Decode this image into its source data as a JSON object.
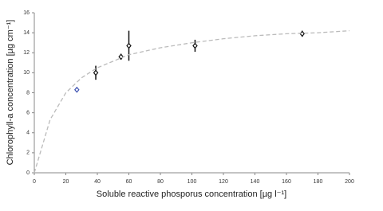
{
  "chart_data": {
    "type": "scatter",
    "x_label": "Soluble reactive phosporus concentration [µg l⁻¹]",
    "y_label": "Chlorophyll-a concentration [µg cm⁻¹]",
    "xlim": [
      0,
      200
    ],
    "xticks": [
      0,
      20,
      40,
      60,
      80,
      100,
      120,
      140,
      160,
      180,
      200
    ],
    "ylim": [
      0,
      16
    ],
    "yticks": [
      0,
      2,
      4,
      6,
      8,
      10,
      12,
      14,
      16
    ],
    "series": [
      {
        "color": "#111111",
        "marker_colors": [
          "#3a4fb0",
          "#111111",
          "#111111",
          "#111111",
          "#111111",
          "#111111"
        ],
        "x": [
          27,
          39,
          55,
          60,
          102,
          170
        ],
        "values": [
          8.3,
          10.0,
          11.6,
          12.7,
          12.7,
          13.9
        ],
        "errors": [
          0,
          0.7,
          0.3,
          1.5,
          0.6,
          0.3
        ]
      },
      {
        "color": "#bbbbbb",
        "style": "dashed",
        "x": [
          0,
          10,
          20,
          30,
          40,
          60,
          80,
          100,
          120,
          140,
          160,
          180,
          200
        ],
        "values": [
          0,
          5.3,
          8.0,
          9.5,
          10.5,
          11.8,
          12.5,
          13.0,
          13.4,
          13.7,
          13.9,
          14.0,
          14.2
        ]
      }
    ]
  }
}
